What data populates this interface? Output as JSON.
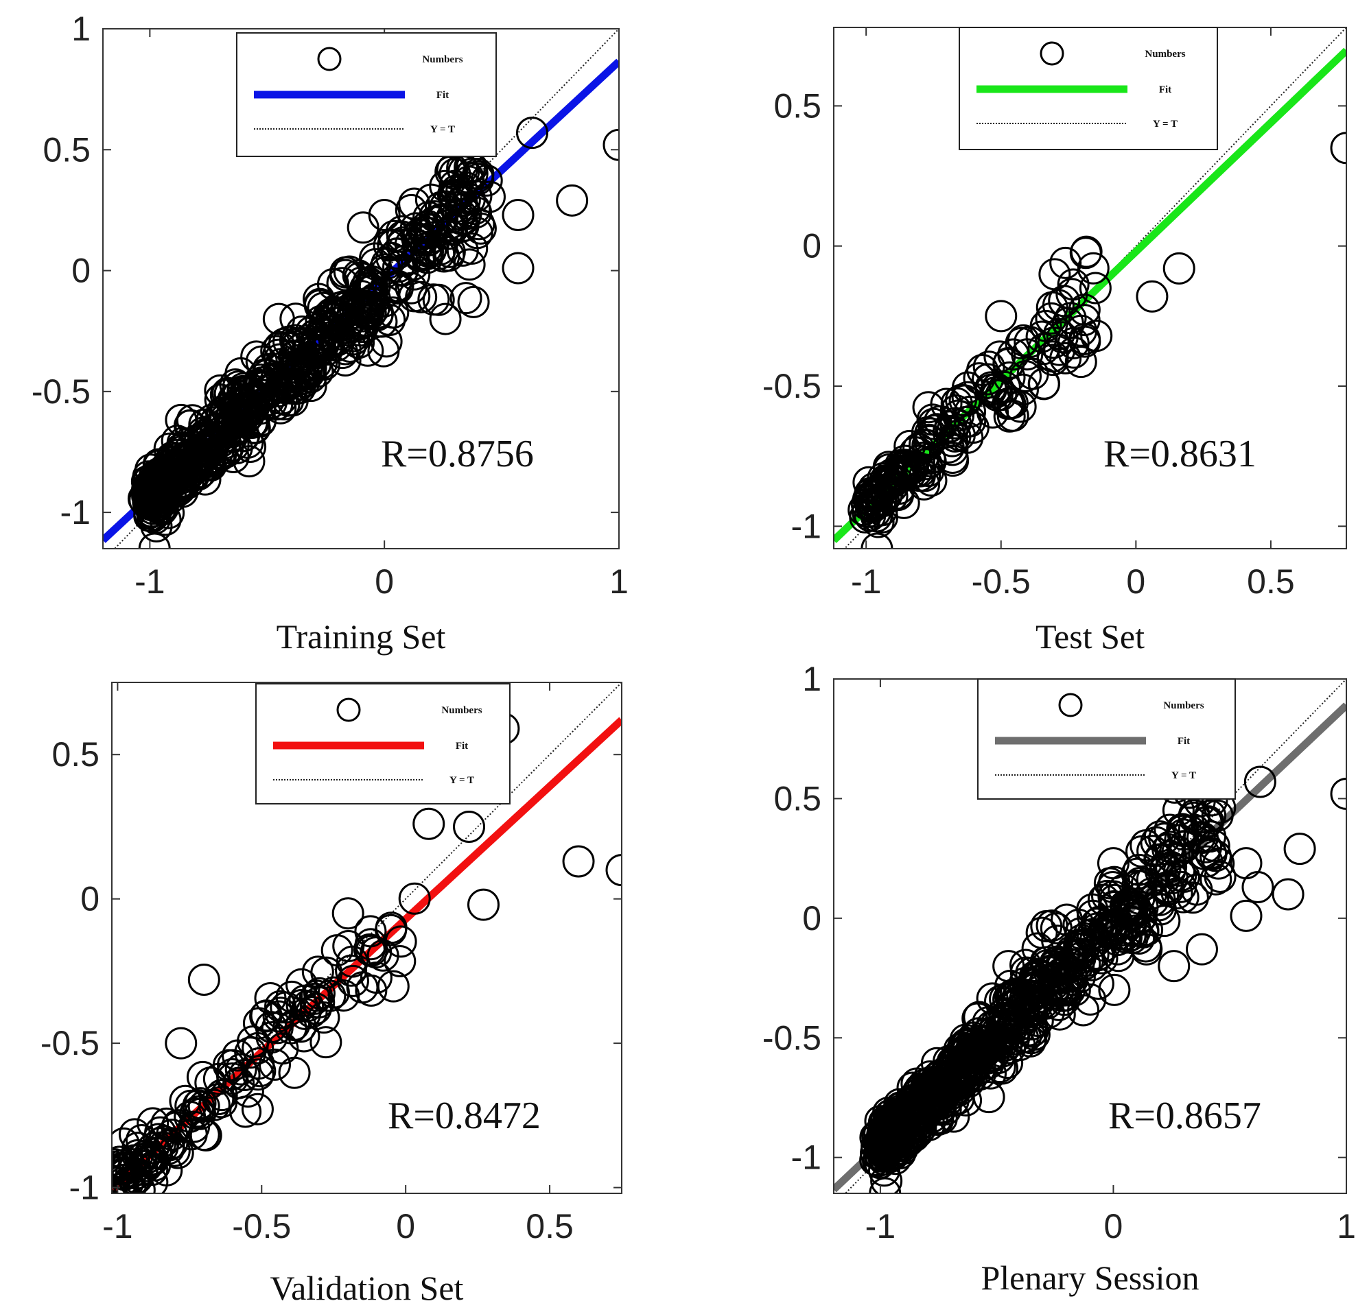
{
  "chart_data": [
    {
      "type": "scatter",
      "xlabel": "Training Set",
      "r_label": "R=0.8756",
      "legend": {
        "numbers": "Numbers",
        "fit": "Fit",
        "yt": "Y = T"
      },
      "fit_color": "#0a14e6",
      "xlim": [
        -1.2,
        1.0
      ],
      "ylim": [
        -1.15,
        1.0
      ],
      "xticks": [
        -1,
        0,
        1
      ],
      "yticks": [
        -1,
        -0.5,
        0,
        0.5,
        1
      ],
      "fit_line": {
        "slope": 0.9,
        "intercept": -0.035
      },
      "outliers": [
        [
          0.63,
          0.57
        ],
        [
          1.0,
          0.52
        ],
        [
          0.57,
          0.23
        ],
        [
          0.8,
          0.29
        ],
        [
          0.57,
          0.01
        ],
        [
          0.38,
          -0.13
        ],
        [
          0.26,
          -0.2
        ],
        [
          -0.45,
          -0.2
        ],
        [
          -0.98,
          -1.15
        ],
        [
          0.0,
          0.23
        ],
        [
          0.4,
          0.4
        ],
        [
          0.3,
          0.35
        ]
      ],
      "cluster": {
        "n": 620,
        "x_range": [
          -0.99,
          0.45
        ],
        "slope": 0.9,
        "intercept": -0.035,
        "spread": 0.1
      }
    },
    {
      "type": "scatter",
      "xlabel": "Test Set",
      "r_label": "R=0.8631",
      "legend": {
        "numbers": "Numbers",
        "fit": "Fit",
        "yt": "Y = T"
      },
      "fit_color": "#19e619",
      "xlim": [
        -1.12,
        0.78
      ],
      "ylim": [
        -1.08,
        0.78
      ],
      "xticks": [
        -1,
        -0.5,
        0,
        0.5
      ],
      "yticks": [
        -1,
        -0.5,
        0,
        0.5
      ],
      "fit_line": {
        "slope": 0.92,
        "intercept": -0.02
      },
      "outliers": [
        [
          0.78,
          0.35
        ],
        [
          0.16,
          -0.08
        ],
        [
          0.06,
          -0.18
        ],
        [
          -0.5,
          -0.25
        ],
        [
          -0.15,
          -0.15
        ],
        [
          -0.96,
          -1.08
        ]
      ],
      "cluster": {
        "n": 190,
        "x_range": [
          -0.99,
          -0.15
        ],
        "slope": 0.92,
        "intercept": -0.02,
        "spread": 0.08
      }
    },
    {
      "type": "scatter",
      "xlabel": "Validation Set",
      "r_label": "R=0.8472",
      "legend": {
        "numbers": "Numbers",
        "fit": "Fit",
        "yt": "Y = T"
      },
      "fit_color": "#f21010",
      "xlim": [
        -1.02,
        0.75
      ],
      "ylim": [
        -1.02,
        0.75
      ],
      "xticks": [
        -1,
        -0.5,
        0,
        0.5
      ],
      "yticks": [
        -1,
        -0.5,
        0,
        0.5
      ],
      "fit_line": {
        "slope": 0.92,
        "intercept": -0.07
      },
      "outliers": [
        [
          0.75,
          0.1
        ],
        [
          0.6,
          0.13
        ],
        [
          0.27,
          -0.02
        ],
        [
          0.22,
          0.25
        ],
        [
          0.08,
          0.26
        ],
        [
          0.34,
          0.59
        ],
        [
          -0.05,
          -0.1
        ],
        [
          -0.2,
          -0.05
        ],
        [
          -0.78,
          -0.5
        ],
        [
          -0.7,
          -0.28
        ]
      ],
      "cluster": {
        "n": 160,
        "x_range": [
          -0.99,
          0.0
        ],
        "slope": 0.92,
        "intercept": -0.07,
        "spread": 0.08
      }
    },
    {
      "type": "scatter",
      "xlabel": "Plenary Session",
      "r_label": "R=0.8657",
      "legend": {
        "numbers": "Numbers",
        "fit": "Fit",
        "yt": "Y = T"
      },
      "fit_color": "#6e6e6e",
      "xlim": [
        -1.2,
        1.0
      ],
      "ylim": [
        -1.15,
        1.0
      ],
      "xticks": [
        -1,
        0,
        1
      ],
      "yticks": [
        -1,
        -0.5,
        0,
        0.5,
        1
      ],
      "fit_line": {
        "slope": 0.92,
        "intercept": -0.03
      },
      "outliers": [
        [
          0.63,
          0.57
        ],
        [
          1.0,
          0.52
        ],
        [
          0.57,
          0.23
        ],
        [
          0.8,
          0.29
        ],
        [
          0.57,
          0.01
        ],
        [
          0.38,
          -0.13
        ],
        [
          0.26,
          -0.2
        ],
        [
          -0.45,
          -0.2
        ],
        [
          -0.98,
          -1.15
        ],
        [
          0.0,
          0.23
        ],
        [
          0.4,
          0.4
        ],
        [
          0.3,
          0.35
        ],
        [
          0.75,
          0.1
        ],
        [
          0.62,
          0.13
        ]
      ],
      "cluster": {
        "n": 700,
        "x_range": [
          -0.99,
          0.45
        ],
        "slope": 0.92,
        "intercept": -0.03,
        "spread": 0.1
      }
    }
  ]
}
